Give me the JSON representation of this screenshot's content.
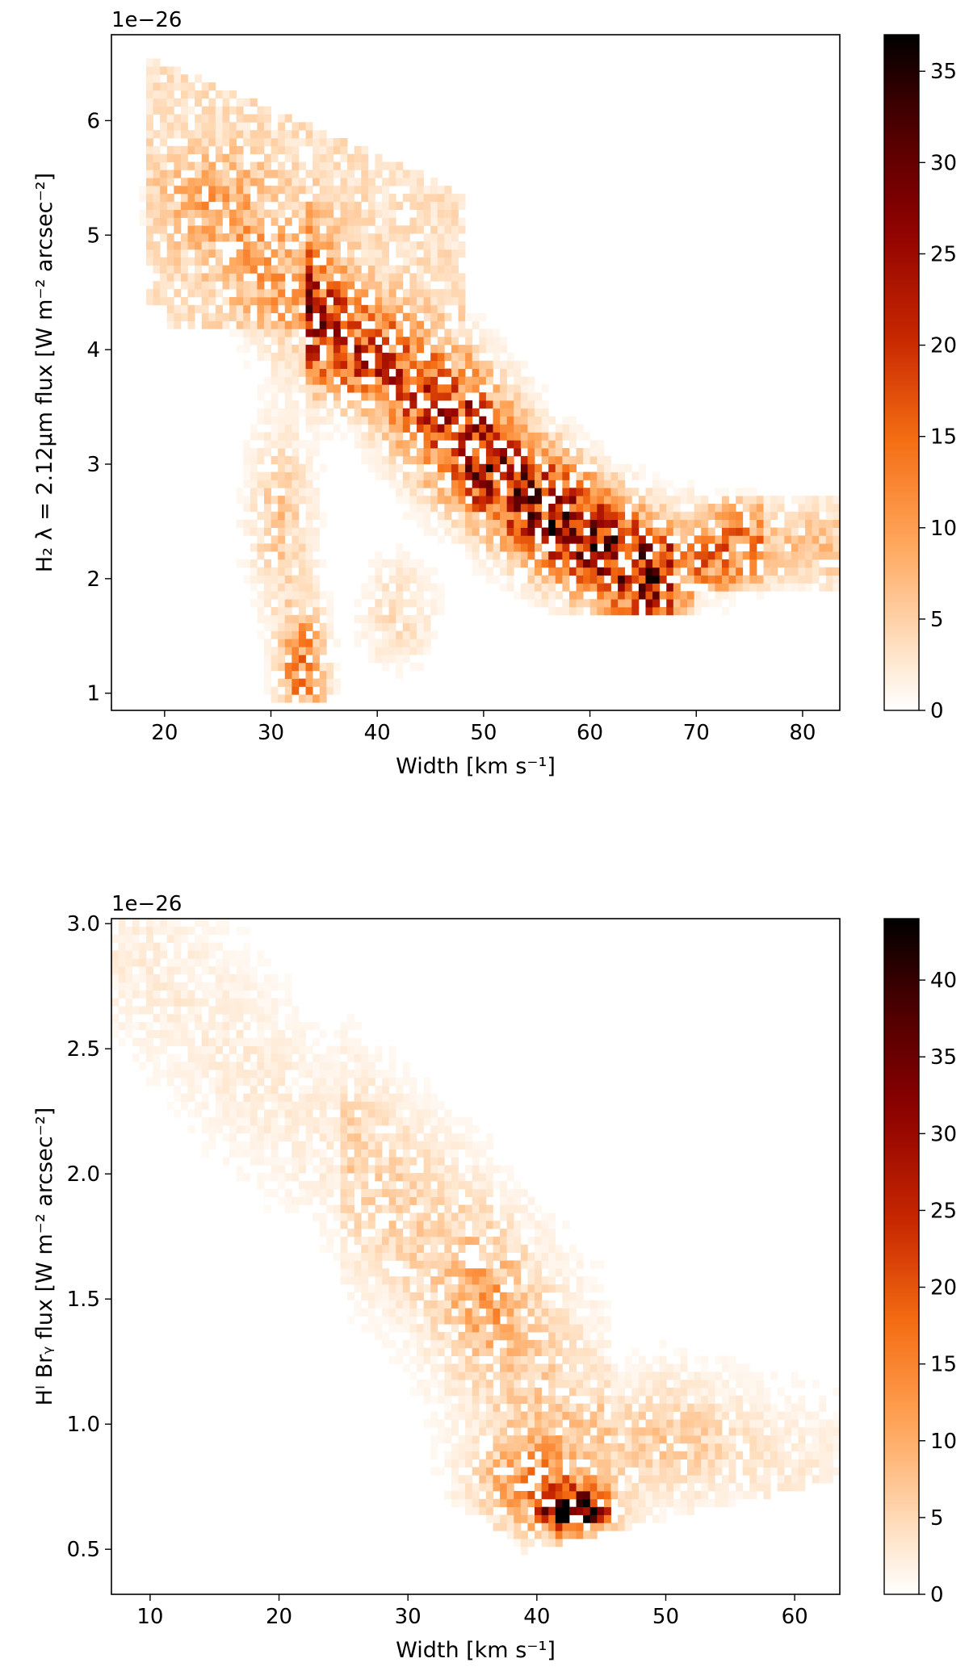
{
  "chart_data": [
    {
      "type": "heatmap",
      "title": "",
      "xlabel": "Width [km s⁻¹]",
      "ylabel": "H₂ λ = 2.12μm flux [W m⁻² arcsec⁻²]",
      "offset_text": "1e−26",
      "xlim": [
        15,
        83.5
      ],
      "ylim": [
        0.85,
        6.75
      ],
      "xticks": [
        20,
        30,
        40,
        50,
        60,
        70,
        80
      ],
      "yticks": [
        1,
        2,
        3,
        4,
        5,
        6
      ],
      "colorbar": {
        "ticks": [
          0,
          5,
          10,
          15,
          20,
          25,
          30,
          35
        ],
        "range": [
          0,
          37
        ],
        "colormap": "gist_heat_r"
      },
      "density_ridge": [
        {
          "x": 22,
          "y": 6.4,
          "count": 4
        },
        {
          "x": 28,
          "y": 5.0,
          "count": 5
        },
        {
          "x": 35,
          "y": 4.0,
          "count": 18
        },
        {
          "x": 42,
          "y": 3.8,
          "count": 26
        },
        {
          "x": 48,
          "y": 3.3,
          "count": 28
        },
        {
          "x": 52,
          "y": 2.8,
          "count": 32
        },
        {
          "x": 58,
          "y": 2.4,
          "count": 30
        },
        {
          "x": 64,
          "y": 2.0,
          "count": 35
        },
        {
          "x": 70,
          "y": 2.2,
          "count": 14
        },
        {
          "x": 80,
          "y": 2.3,
          "count": 6
        },
        {
          "x": 33,
          "y": 1.1,
          "count": 16
        }
      ],
      "grid": false
    },
    {
      "type": "heatmap",
      "title": "",
      "xlabel": "Width [km s⁻¹]",
      "ylabel": "Hᴵ Brᵧ flux [W m⁻² arcsec⁻²]",
      "offset_text": "1e−26",
      "xlim": [
        7,
        63.5
      ],
      "ylim": [
        0.32,
        3.02
      ],
      "xticks": [
        10,
        20,
        30,
        40,
        50,
        60
      ],
      "yticks": [
        0.5,
        1.0,
        1.5,
        2.0,
        2.5,
        3.0
      ],
      "ytick_labels": [
        "0.5",
        "1.0",
        "1.5",
        "2.0",
        "2.5",
        "3.0"
      ],
      "colorbar": {
        "ticks": [
          0,
          5,
          10,
          15,
          20,
          25,
          30,
          35,
          40
        ],
        "range": [
          0,
          44
        ],
        "colormap": "gist_heat_r"
      },
      "density_ridge": [
        {
          "x": 9,
          "y": 2.9,
          "count": 2
        },
        {
          "x": 20,
          "y": 2.3,
          "count": 3
        },
        {
          "x": 30,
          "y": 1.9,
          "count": 6
        },
        {
          "x": 36,
          "y": 1.5,
          "count": 10
        },
        {
          "x": 40,
          "y": 1.1,
          "count": 8
        },
        {
          "x": 43,
          "y": 0.65,
          "count": 40
        },
        {
          "x": 50,
          "y": 0.95,
          "count": 9
        },
        {
          "x": 60,
          "y": 0.8,
          "count": 4
        }
      ],
      "grid": false
    }
  ]
}
